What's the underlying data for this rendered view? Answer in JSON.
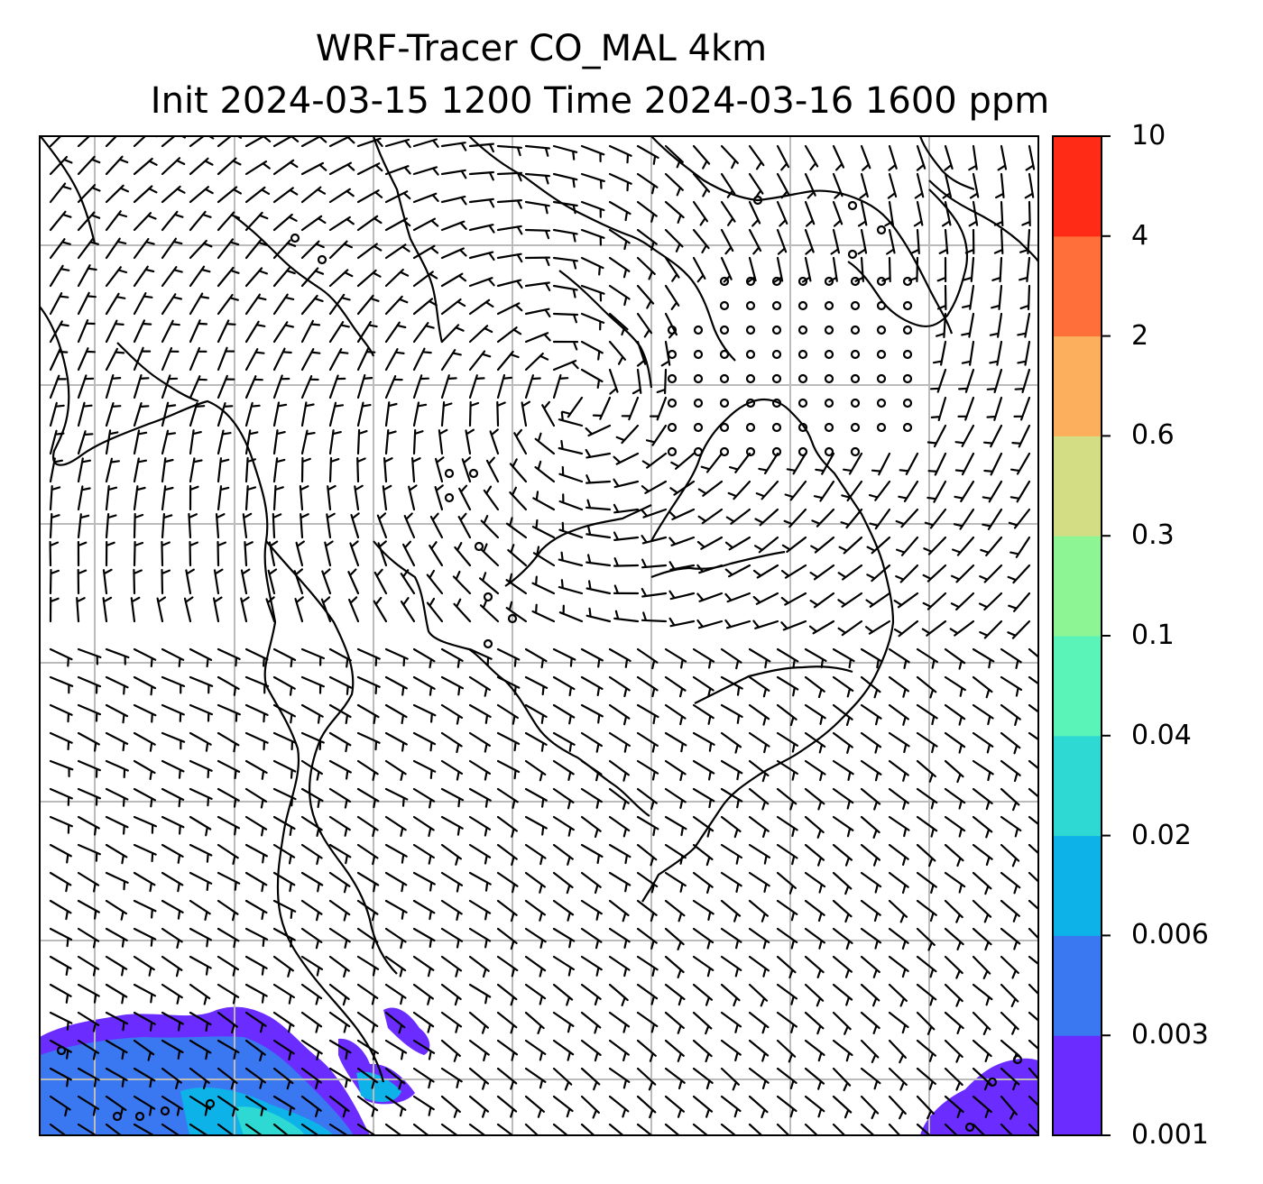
{
  "title": {
    "line1": "WRF-Tracer CO_MAL 4km",
    "line2": "Init 2024-03-15 1200 Time 2024-03-16 1600 ppm"
  },
  "colorbar": {
    "levels": [
      "0.001",
      "0.003",
      "0.006",
      "0.02",
      "0.04",
      "0.1",
      "0.3",
      "0.6",
      "2",
      "4",
      "10"
    ],
    "colors": [
      "#6a2cff",
      "#3a78f2",
      "#0db3e8",
      "#2ed9d3",
      "#5bf4b8",
      "#8ef595",
      "#d3de84",
      "#fcb05d",
      "#ff6f3a",
      "#ff2b16"
    ]
  },
  "map": {
    "fill_colors": {
      "lowest": "#6a2cff",
      "low": "#3a78f2",
      "mid": "#0db3e8",
      "midhigh": "#2ed9d3"
    },
    "gridline_color": "#bbbbbb",
    "coast_color": "#000000"
  }
}
